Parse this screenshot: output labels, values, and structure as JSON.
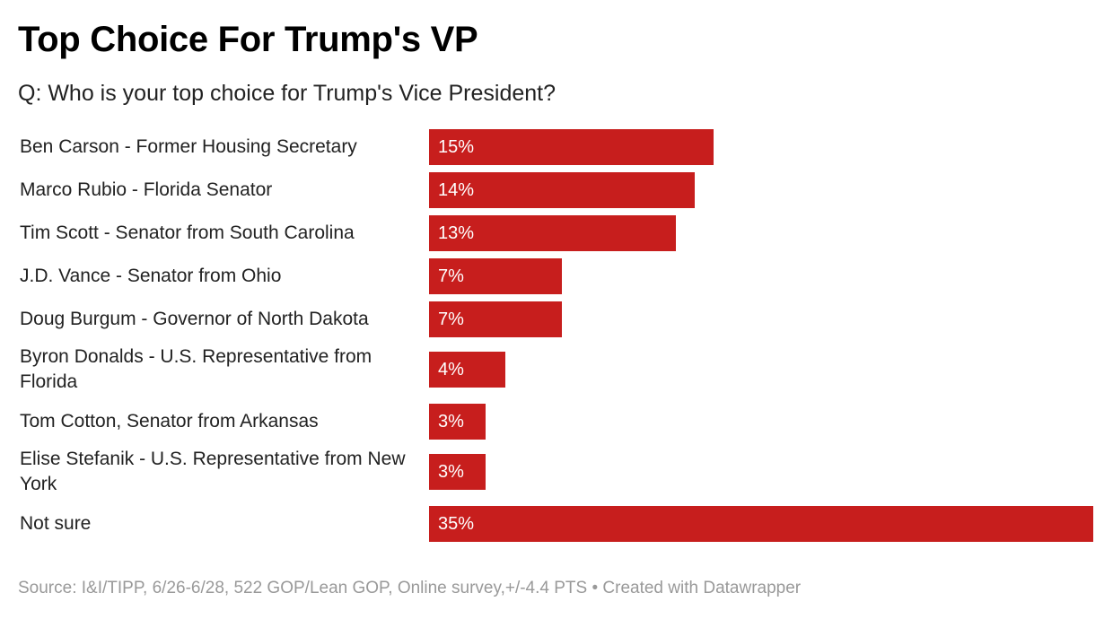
{
  "chart_data": {
    "type": "bar",
    "orientation": "horizontal",
    "title": "Top Choice For Trump's VP",
    "subtitle": "Q: Who is your top choice for Trump's Vice President?",
    "categories": [
      "Ben Carson - Former Housing Secretary",
      "Marco Rubio - Florida Senator",
      "Tim Scott - Senator from South Carolina",
      "J.D. Vance - Senator from Ohio",
      "Doug Burgum - Governor of North Dakota",
      "Byron Donalds - U.S. Representative from Florida",
      "Tom Cotton, Senator from Arkansas",
      "Elise Stefanik - U.S. Representative from New York",
      "Not sure"
    ],
    "values": [
      15,
      14,
      13,
      7,
      7,
      4,
      3,
      3,
      35
    ],
    "value_labels": [
      "15%",
      "14%",
      "13%",
      "7%",
      "7%",
      "4%",
      "3%",
      "3%",
      "35%"
    ],
    "xlim": [
      0,
      35
    ],
    "grid": false,
    "bar_color": "#c71e1d"
  },
  "footer": "Source: I&I/TIPP, 6/26-6/28, 522 GOP/Lean GOP, Online survey,+/-4.4 PTS • Created with Datawrapper"
}
